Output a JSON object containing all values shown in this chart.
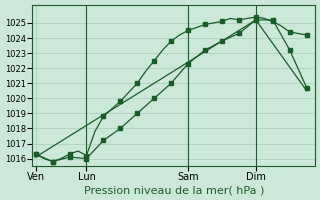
{
  "background_color": "#cce8d8",
  "grid_color": "#aaccbb",
  "line_color": "#1a5c2a",
  "title": "Pression niveau de la mer( hPa )",
  "title_fontsize": 8.0,
  "title_color": "#1a5c2a",
  "ylim": [
    1015.5,
    1026.2
  ],
  "yticks": [
    1016,
    1017,
    1018,
    1019,
    1020,
    1021,
    1022,
    1023,
    1024,
    1025
  ],
  "ytick_fontsize": 6.0,
  "xtick_labels": [
    "Ven",
    "Lun",
    "Sam",
    "Dim"
  ],
  "xtick_positions": [
    0,
    3,
    9,
    13
  ],
  "xtick_fontsize": 7.0,
  "xlim": [
    -0.2,
    16.5
  ],
  "series1_x": [
    0,
    0.5,
    1,
    1.5,
    2,
    2.5,
    3,
    3.5,
    4,
    4.5,
    5,
    5.5,
    6,
    6.5,
    7,
    7.5,
    8,
    8.5,
    9,
    9.5,
    10,
    10.5,
    11,
    11.5,
    12,
    12.5,
    13,
    13.5,
    14,
    14.5,
    15,
    15.5,
    16
  ],
  "series1_y": [
    1016.3,
    1016.0,
    1015.8,
    1016.0,
    1016.3,
    1016.5,
    1016.2,
    1017.8,
    1018.8,
    1019.3,
    1019.8,
    1020.4,
    1021.0,
    1021.8,
    1022.5,
    1023.2,
    1023.8,
    1024.2,
    1024.5,
    1024.7,
    1024.9,
    1025.0,
    1025.1,
    1025.3,
    1025.2,
    1025.3,
    1025.4,
    1025.3,
    1025.1,
    1024.8,
    1024.4,
    1024.3,
    1024.2
  ],
  "series1_marker_x": [
    0,
    1,
    2,
    3,
    4,
    5,
    6,
    7,
    8,
    9,
    10,
    11,
    12,
    13,
    14,
    15,
    16
  ],
  "series1_marker_y": [
    1016.3,
    1015.8,
    1016.3,
    1016.2,
    1018.8,
    1019.8,
    1021.0,
    1022.5,
    1023.8,
    1024.5,
    1024.9,
    1025.1,
    1025.2,
    1025.4,
    1025.1,
    1024.4,
    1024.2
  ],
  "series2_x": [
    0,
    1,
    2,
    3,
    4,
    5,
    6,
    7,
    8,
    9,
    10,
    11,
    12,
    13,
    14,
    15,
    16
  ],
  "series2_y": [
    1016.3,
    1015.8,
    1016.1,
    1016.0,
    1017.2,
    1018.0,
    1019.0,
    1020.0,
    1021.0,
    1022.3,
    1023.2,
    1023.8,
    1024.3,
    1025.2,
    1025.2,
    1023.2,
    1020.7
  ],
  "series3_x": [
    0,
    13,
    16
  ],
  "series3_y": [
    1016.1,
    1025.2,
    1020.5
  ]
}
